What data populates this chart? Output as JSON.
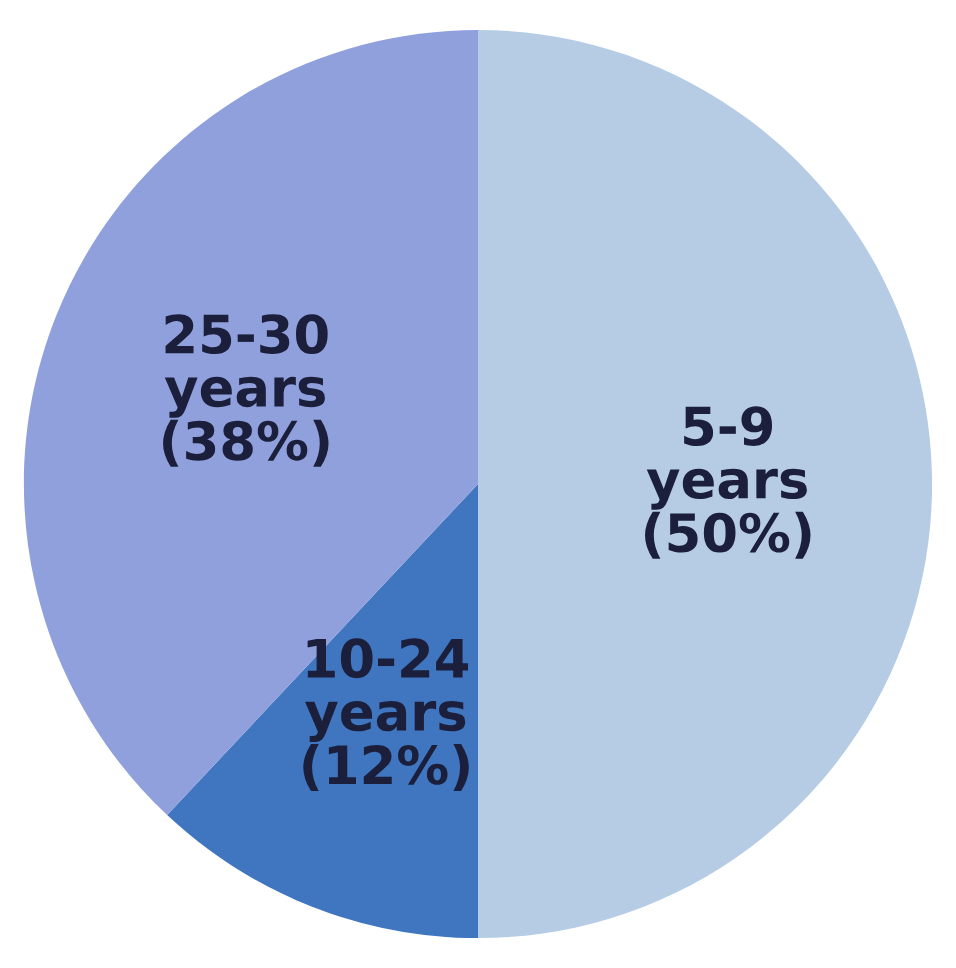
{
  "chart_data": {
    "type": "pie",
    "categories": [
      "5-9 years",
      "10-24 years",
      "25-30 years"
    ],
    "values": [
      50,
      12,
      38
    ],
    "colors": [
      "#b5cce4",
      "#3f76bf",
      "#8fa0dc"
    ],
    "value_labels": [
      "(50%)",
      "(12%)",
      "(38%)"
    ]
  }
}
